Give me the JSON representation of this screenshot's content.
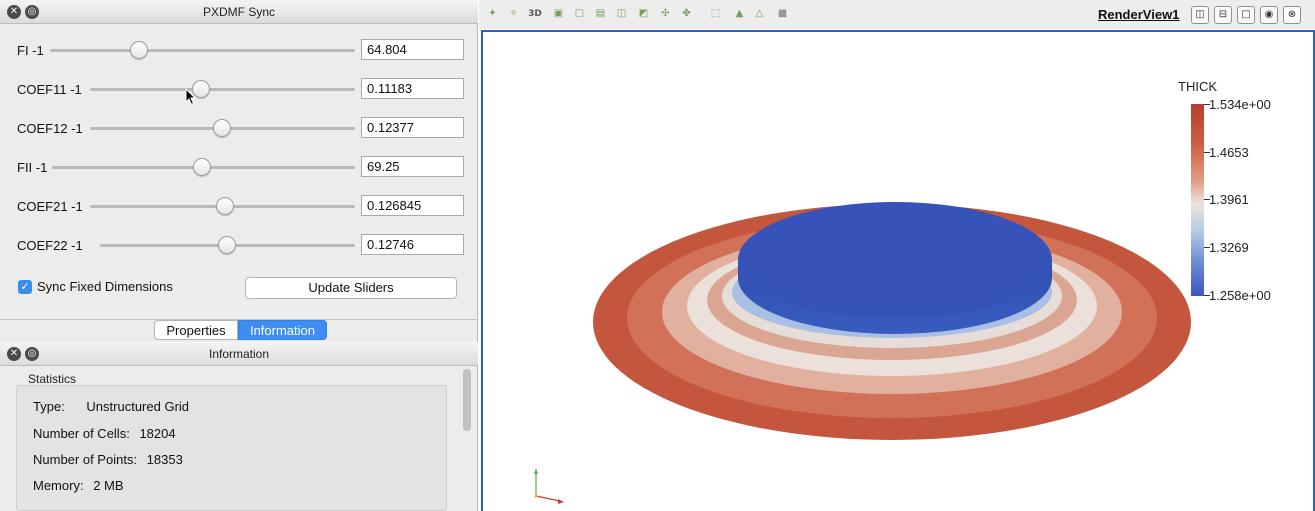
{
  "sync_panel": {
    "title": "PXDMF Sync",
    "sliders": [
      {
        "label": "FI -1",
        "value": "64.804",
        "position": 0.33
      },
      {
        "label": "COEF11 -1",
        "value": "0.11183",
        "position": 0.42
      },
      {
        "label": "COEF12 -1",
        "value": "0.12377",
        "position": 0.5
      },
      {
        "label": "FII -1",
        "value": "69.25",
        "position": 0.46
      },
      {
        "label": "COEF21 -1",
        "value": "0.126845",
        "position": 0.48
      },
      {
        "label": "COEF22 -1",
        "value": "0.12746",
        "position": 0.5
      }
    ],
    "sync_fixed_label": "Sync Fixed Dimensions",
    "sync_fixed_checked": true,
    "update_button": "Update Sliders"
  },
  "tabs": [
    {
      "label": "Properties",
      "active": false
    },
    {
      "label": "Information",
      "active": true
    }
  ],
  "info_panel": {
    "title": "Information",
    "section": "Statistics",
    "stats": [
      {
        "key": "Type:",
        "value": "Unstructured Grid"
      },
      {
        "key": "Number of Cells:",
        "value": "18204"
      },
      {
        "key": "Number of Points:",
        "value": "18353"
      },
      {
        "key": "Memory:",
        "value": "2 MB"
      }
    ]
  },
  "toolbar": {
    "icons": [
      "reset-camera-icon",
      "zoom-data-icon",
      "3d-toggle-icon",
      "select-cells-icon",
      "select-points-icon",
      "select-frustum-cells-icon",
      "select-frustum-points-icon",
      "select-block-icon",
      "interactive-select-icon",
      "interactive-select-points-icon",
      "polygon-select-icon",
      "hover-points-icon",
      "hover-cells-icon",
      "clear-selection-icon"
    ],
    "3d_label": "3D"
  },
  "render_view": {
    "label": "RenderView1",
    "buttons": [
      "split-horizontal-icon",
      "split-vertical-icon",
      "maximize-icon",
      "camera-icon",
      "close-icon"
    ]
  },
  "color_legend": {
    "title": "THICK",
    "labels": [
      "1.534e+00",
      "1.4653",
      "1.3961",
      "1.3269",
      "1.258e+00"
    ],
    "colors": {
      "high": "#b3402d",
      "mid": "#ece4df",
      "low": "#3b55c2"
    }
  },
  "colors": {
    "accent": "#3d8ef0",
    "view_border": "#2d5ec9"
  }
}
